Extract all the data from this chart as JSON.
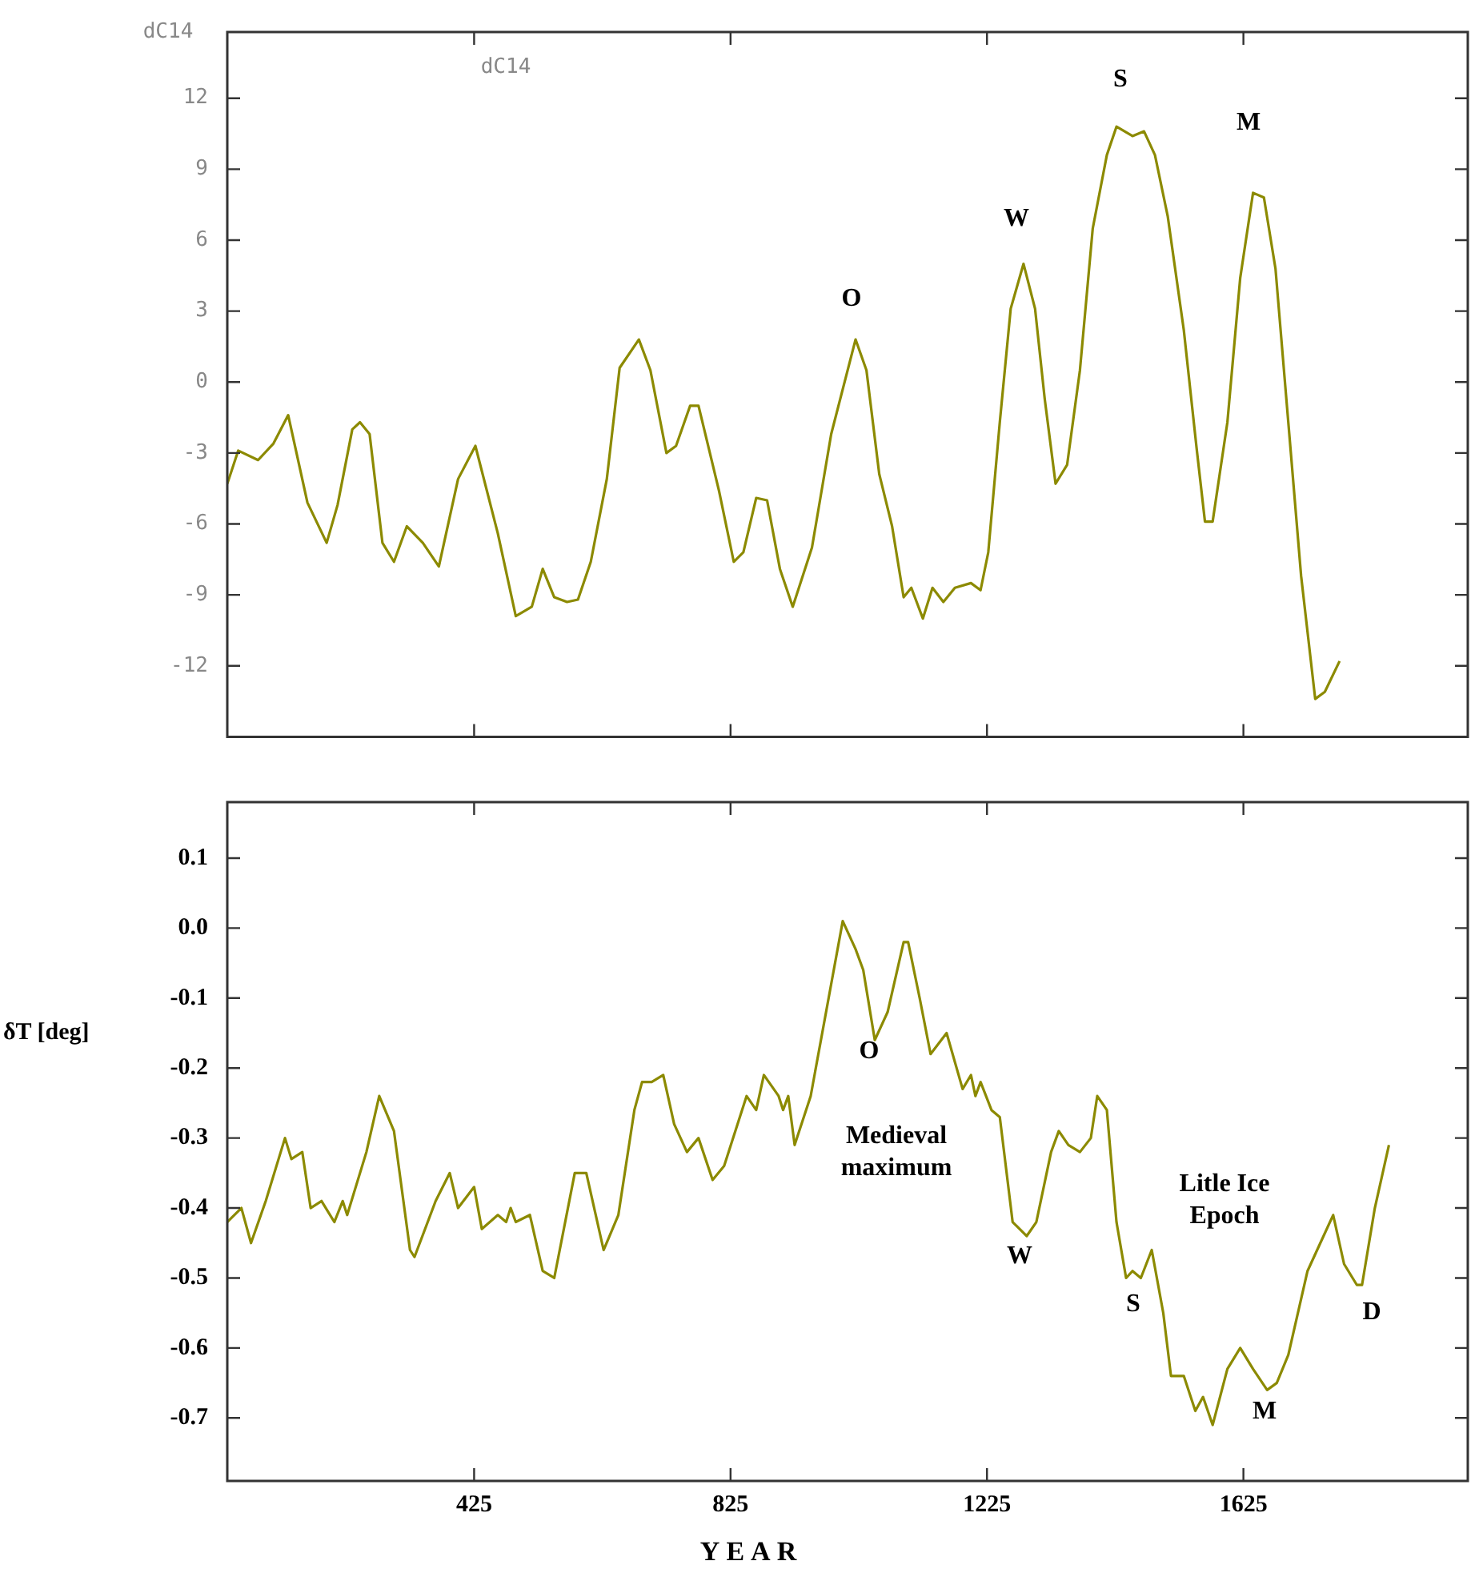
{
  "chart_data": [
    {
      "type": "line",
      "ylabel": "dC14",
      "color": "#8c8a00",
      "tick_labels": "y",
      "x": [
        40,
        57,
        88,
        112,
        135,
        165,
        195,
        212,
        235,
        247,
        262,
        282,
        300,
        320,
        345,
        370,
        400,
        427,
        462,
        490,
        515,
        532,
        550,
        570,
        587,
        607,
        632,
        652,
        682,
        700,
        725,
        740,
        762,
        775,
        807,
        830,
        845,
        865,
        882,
        902,
        922,
        952,
        982,
        1020,
        1037,
        1057,
        1077,
        1095,
        1107,
        1125,
        1140,
        1157,
        1175,
        1200,
        1215,
        1227,
        1245,
        1262,
        1282,
        1300,
        1315,
        1332,
        1350,
        1370,
        1390,
        1412,
        1427,
        1452,
        1470,
        1487,
        1507,
        1532,
        1552,
        1565,
        1577,
        1600,
        1620,
        1640,
        1657,
        1675,
        1695,
        1715,
        1737,
        1752,
        1775
      ],
      "values": [
        -4.3,
        -2.9,
        -3.3,
        -2.6,
        -1.4,
        -5.1,
        -6.8,
        -5.2,
        -2.0,
        -1.7,
        -2.2,
        -6.8,
        -7.6,
        -6.1,
        -6.8,
        -7.8,
        -4.1,
        -2.7,
        -6.4,
        -9.9,
        -9.5,
        -7.9,
        -9.1,
        -9.3,
        -9.2,
        -7.6,
        -4.1,
        0.6,
        1.8,
        0.5,
        -3.0,
        -2.7,
        -1.0,
        -1.0,
        -4.6,
        -7.6,
        -7.2,
        -4.9,
        -5.0,
        -7.9,
        -9.5,
        -7.0,
        -2.2,
        1.8,
        0.5,
        -3.9,
        -6.1,
        -9.1,
        -8.7,
        -10.0,
        -8.7,
        -9.3,
        -8.7,
        -8.5,
        -8.8,
        -7.2,
        -1.7,
        3.1,
        5.0,
        3.1,
        -0.7,
        -4.3,
        -3.5,
        0.5,
        6.5,
        9.6,
        10.8,
        10.4,
        10.6,
        9.6,
        7.0,
        2.2,
        -2.8,
        -5.9,
        -5.9,
        -1.7,
        4.4,
        8.0,
        7.8,
        4.8,
        -1.7,
        -8.2,
        -13.4,
        -13.1,
        -11.8
      ],
      "xlim": [
        40,
        1975
      ],
      "ylim": [
        -15,
        14.8
      ],
      "xticks": [
        {
          "value": 425,
          "label": null
        },
        {
          "value": 825,
          "label": null
        },
        {
          "value": 1225,
          "label": null
        },
        {
          "value": 1625,
          "label": null
        }
      ],
      "yticks": [
        -12,
        -9,
        -6,
        -3,
        0,
        3,
        6,
        9,
        12
      ],
      "annotations": [
        "dC14",
        "O",
        "W",
        "S",
        "M"
      ]
    },
    {
      "type": "line",
      "ylabel": "δT [deg]",
      "xlabel": "YEAR",
      "color": "#8c8a00",
      "x": [
        40,
        62,
        77,
        100,
        130,
        140,
        157,
        170,
        187,
        207,
        220,
        227,
        257,
        277,
        300,
        325,
        332,
        365,
        387,
        400,
        425,
        437,
        462,
        475,
        482,
        490,
        512,
        532,
        550,
        582,
        600,
        627,
        650,
        675,
        687,
        702,
        720,
        737,
        757,
        775,
        797,
        815,
        850,
        865,
        877,
        900,
        907,
        915,
        925,
        950,
        982,
        1000,
        1020,
        1032,
        1050,
        1070,
        1095,
        1102,
        1120,
        1137,
        1162,
        1187,
        1200,
        1207,
        1215,
        1232,
        1245,
        1265,
        1287,
        1302,
        1325,
        1337,
        1352,
        1370,
        1387,
        1397,
        1412,
        1427,
        1442,
        1452,
        1465,
        1482,
        1500,
        1512,
        1532,
        1550,
        1562,
        1577,
        1600,
        1620,
        1640,
        1662,
        1677,
        1695,
        1725,
        1745,
        1765,
        1782,
        1802,
        1810,
        1830,
        1852
      ],
      "values": [
        -0.42,
        -0.4,
        -0.45,
        -0.39,
        -0.3,
        -0.33,
        -0.32,
        -0.4,
        -0.39,
        -0.42,
        -0.39,
        -0.41,
        -0.32,
        -0.24,
        -0.29,
        -0.46,
        -0.47,
        -0.39,
        -0.35,
        -0.4,
        -0.37,
        -0.43,
        -0.41,
        -0.42,
        -0.4,
        -0.42,
        -0.41,
        -0.49,
        -0.5,
        -0.35,
        -0.35,
        -0.46,
        -0.41,
        -0.26,
        -0.22,
        -0.22,
        -0.21,
        -0.28,
        -0.32,
        -0.3,
        -0.36,
        -0.34,
        -0.24,
        -0.26,
        -0.21,
        -0.24,
        -0.26,
        -0.24,
        -0.31,
        -0.24,
        -0.08,
        0.01,
        -0.03,
        -0.06,
        -0.16,
        -0.12,
        -0.02,
        -0.02,
        -0.1,
        -0.18,
        -0.15,
        -0.23,
        -0.21,
        -0.24,
        -0.22,
        -0.26,
        -0.27,
        -0.42,
        -0.44,
        -0.42,
        -0.32,
        -0.29,
        -0.31,
        -0.32,
        -0.3,
        -0.24,
        -0.26,
        -0.42,
        -0.5,
        -0.49,
        -0.5,
        -0.46,
        -0.55,
        -0.64,
        -0.64,
        -0.69,
        -0.67,
        -0.71,
        -0.63,
        -0.6,
        -0.63,
        -0.66,
        -0.65,
        -0.61,
        -0.49,
        -0.45,
        -0.41,
        -0.48,
        -0.51,
        -0.51,
        -0.4,
        -0.31
      ],
      "xlim": [
        40,
        1975
      ],
      "ylim": [
        -0.79,
        0.18
      ],
      "xticks": [
        425,
        825,
        1225,
        1625
      ],
      "yticks": [
        {
          "value": -0.7,
          "label": "-0.7"
        },
        {
          "value": -0.6,
          "label": "-0.6"
        },
        {
          "value": -0.5,
          "label": "-0.5"
        },
        {
          "value": -0.4,
          "label": "-0.4"
        },
        {
          "value": -0.3,
          "label": "-0.3"
        },
        {
          "value": -0.2,
          "label": "-0.2"
        },
        {
          "value": -0.1,
          "label": "-0.1"
        },
        {
          "value": 0,
          "label": "0.0"
        },
        {
          "value": 0.1,
          "label": "0.1"
        }
      ],
      "annotations": [
        "O",
        "Medieval maximum",
        "W",
        "S",
        "Litle Ice Epoch",
        "M",
        "D"
      ]
    }
  ]
}
